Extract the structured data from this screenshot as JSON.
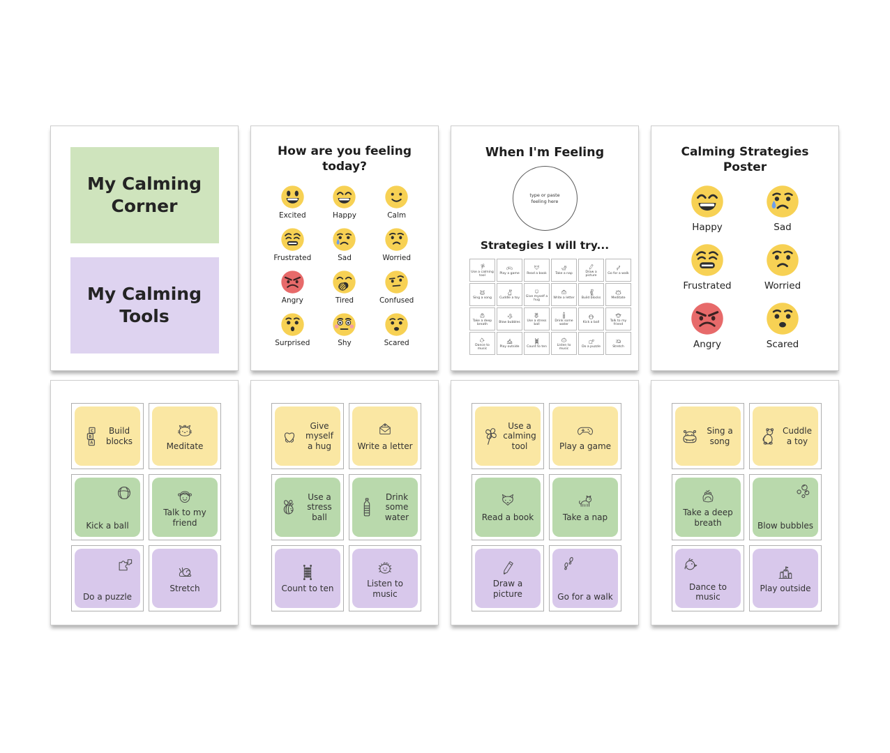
{
  "colors": {
    "cover_green": "#CFE4BD",
    "cover_purple": "#DED3F0",
    "card_yellow": "#FAE7A3",
    "card_green": "#B9D9AC",
    "card_purple": "#D8C8EB",
    "emoji_yellow": "#F7D154",
    "emoji_red": "#E76A6A",
    "tear_blue": "#6D9EEB",
    "blush_pink": "#F19CA7"
  },
  "cover": {
    "boxes": [
      {
        "label": "My Calming Corner",
        "color": "cover_green"
      },
      {
        "label": "My Calming Tools",
        "color": "cover_purple"
      }
    ]
  },
  "feelings_chart": {
    "title": "How are you feeling today?",
    "emojis": [
      {
        "label": "Excited",
        "type": "excited"
      },
      {
        "label": "Happy",
        "type": "happy"
      },
      {
        "label": "Calm",
        "type": "calm"
      },
      {
        "label": "Frustrated",
        "type": "frustrated"
      },
      {
        "label": "Sad",
        "type": "sad"
      },
      {
        "label": "Worried",
        "type": "worried"
      },
      {
        "label": "Angry",
        "type": "angry"
      },
      {
        "label": "Tired",
        "type": "tired"
      },
      {
        "label": "Confused",
        "type": "confused"
      },
      {
        "label": "Surprised",
        "type": "surprised"
      },
      {
        "label": "Shy",
        "type": "shy"
      },
      {
        "label": "Scared",
        "type": "scared"
      }
    ]
  },
  "when_feeling": {
    "title": "When I'm Feeling",
    "circle_placeholder": "type or paste feeling here",
    "subtitle": "Strategies I will try...",
    "strategies": [
      {
        "label": "Use a calming tool",
        "icon": "pinwheel"
      },
      {
        "label": "Play a game",
        "icon": "controller"
      },
      {
        "label": "Read a book",
        "icon": "fox"
      },
      {
        "label": "Take a nap",
        "icon": "catnap"
      },
      {
        "label": "Draw a picture",
        "icon": "pencil"
      },
      {
        "label": "Go for a walk",
        "icon": "footprints"
      },
      {
        "label": "Sing a song",
        "icon": "hippo"
      },
      {
        "label": "Cuddle a toy",
        "icon": "teddy"
      },
      {
        "label": "Give myself a hug",
        "icon": "hearthands"
      },
      {
        "label": "Write a letter",
        "icon": "envelope"
      },
      {
        "label": "Build blocks",
        "icon": "blocks"
      },
      {
        "label": "Meditate",
        "icon": "cat"
      },
      {
        "label": "Take a deep breath",
        "icon": "frog"
      },
      {
        "label": "Blow bubbles",
        "icon": "bubbles"
      },
      {
        "label": "Use a stress ball",
        "icon": "bee"
      },
      {
        "label": "Drink some water",
        "icon": "bottle"
      },
      {
        "label": "Kick a ball",
        "icon": "ball"
      },
      {
        "label": "Talk to my friend",
        "icon": "friend"
      },
      {
        "label": "Dance to music",
        "icon": "chick"
      },
      {
        "label": "Play outside",
        "icon": "sandcastle"
      },
      {
        "label": "Count to ten",
        "icon": "abacus"
      },
      {
        "label": "Listen to music",
        "icon": "monster"
      },
      {
        "label": "Do a puzzle",
        "icon": "puzzle"
      },
      {
        "label": "Stretch",
        "icon": "snail"
      }
    ]
  },
  "strategies_poster": {
    "title": "Calming Strategies Poster",
    "emojis": [
      {
        "label": "Happy",
        "type": "happy"
      },
      {
        "label": "Sad",
        "type": "sad"
      },
      {
        "label": "Frustrated",
        "type": "frustrated"
      },
      {
        "label": "Worried",
        "type": "worried"
      },
      {
        "label": "Angry",
        "type": "angry"
      },
      {
        "label": "Scared",
        "type": "scared"
      }
    ]
  },
  "tool_pages": [
    {
      "cards": [
        {
          "label": "Build blocks",
          "icon": "blocks",
          "color": "card_yellow",
          "layout": "row"
        },
        {
          "label": "Meditate",
          "icon": "cat",
          "color": "card_yellow",
          "layout": "col"
        },
        {
          "label": "Kick a ball",
          "icon": "ball",
          "color": "card_green",
          "layout": "diag"
        },
        {
          "label": "Talk to my friend",
          "icon": "friend",
          "color": "card_green",
          "layout": "col"
        },
        {
          "label": "Do a puzzle",
          "icon": "puzzle",
          "color": "card_purple",
          "layout": "diag"
        },
        {
          "label": "Stretch",
          "icon": "snail",
          "color": "card_purple",
          "layout": "col"
        }
      ]
    },
    {
      "cards": [
        {
          "label": "Give myself a hug",
          "icon": "hearthands",
          "color": "card_yellow",
          "layout": "row-rev"
        },
        {
          "label": "Write a letter",
          "icon": "envelope",
          "color": "card_yellow",
          "layout": "col"
        },
        {
          "label": "Use a stress ball",
          "icon": "bee",
          "color": "card_green",
          "layout": "row-rev"
        },
        {
          "label": "Drink some water",
          "icon": "bottle",
          "color": "card_green",
          "layout": "row"
        },
        {
          "label": "Count to ten",
          "icon": "abacus",
          "color": "card_purple",
          "layout": "col"
        },
        {
          "label": "Listen to music",
          "icon": "monster",
          "color": "card_purple",
          "layout": "col"
        }
      ]
    },
    {
      "cards": [
        {
          "label": "Use a calming tool",
          "icon": "pinwheel",
          "color": "card_yellow",
          "layout": "row"
        },
        {
          "label": "Play a game",
          "icon": "controller",
          "color": "card_yellow",
          "layout": "col"
        },
        {
          "label": "Read a book",
          "icon": "fox",
          "color": "card_green",
          "layout": "col"
        },
        {
          "label": "Take a nap",
          "icon": "catnap",
          "color": "card_green",
          "layout": "col"
        },
        {
          "label": "Draw a picture",
          "icon": "pencil",
          "color": "card_purple",
          "layout": "col"
        },
        {
          "label": "Go for a walk",
          "icon": "footprints",
          "color": "card_purple",
          "layout": "diag-rev"
        }
      ]
    },
    {
      "cards": [
        {
          "label": "Sing a song",
          "icon": "hippo",
          "color": "card_yellow",
          "layout": "row-rev"
        },
        {
          "label": "Cuddle a toy",
          "icon": "teddy",
          "color": "card_yellow",
          "layout": "row"
        },
        {
          "label": "Take a deep breath",
          "icon": "frog",
          "color": "card_green",
          "layout": "col"
        },
        {
          "label": "Blow bubbles",
          "icon": "bubbles",
          "color": "card_green",
          "layout": "diag"
        },
        {
          "label": "Dance to music",
          "icon": "chick",
          "color": "card_purple",
          "layout": "diag-rev"
        },
        {
          "label": "Play outside",
          "icon": "sandcastle",
          "color": "card_purple",
          "layout": "col"
        }
      ]
    }
  ]
}
